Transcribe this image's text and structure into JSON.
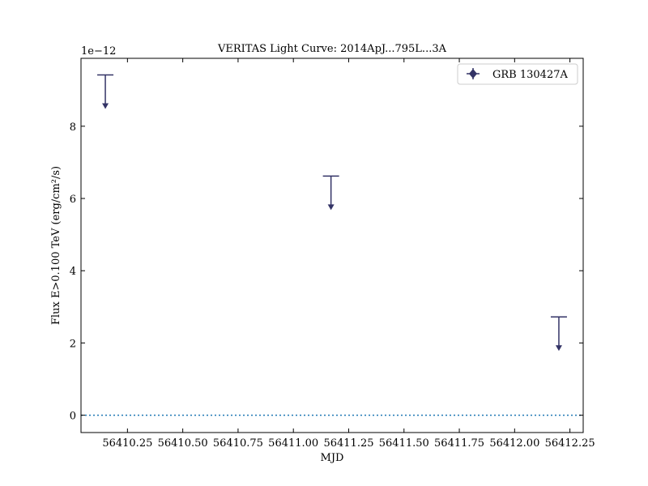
{
  "chart_data": {
    "type": "scatter",
    "title": "VERITAS Light Curve: 2014ApJ...795L...3A",
    "xlabel": "MJD",
    "ylabel": "Flux E>0.100 TeV (erg/cm²/s)",
    "y_multiplier_label": "1e−12",
    "xlim": [
      56410.04,
      56412.31
    ],
    "ylim": [
      -0.48,
      9.88
    ],
    "y_scale_factor": 1e-12,
    "xticks": [
      56410.25,
      56410.5,
      56410.75,
      56411.0,
      56411.25,
      56411.5,
      56411.75,
      56412.0,
      56412.25
    ],
    "xtick_labels": [
      "56410.25",
      "56410.50",
      "56410.75",
      "56411.00",
      "56411.25",
      "56411.50",
      "56411.75",
      "56412.00",
      "56412.25"
    ],
    "yticks": [
      0,
      2,
      4,
      6,
      8
    ],
    "ytick_labels": [
      "0",
      "2",
      "4",
      "6",
      "8"
    ],
    "legend_position": "top-right",
    "grid": false,
    "zero_line": true,
    "series": [
      {
        "name": "GRB 130427A",
        "color": "#333366",
        "marker": "diamond",
        "points": [
          {
            "x": 56410.15,
            "y": 9.42,
            "upper_limit": true
          },
          {
            "x": 56411.17,
            "y": 6.62,
            "upper_limit": true
          },
          {
            "x": 56412.2,
            "y": 2.72,
            "upper_limit": true
          }
        ]
      }
    ],
    "zero_line_color": "#1f77b4"
  }
}
